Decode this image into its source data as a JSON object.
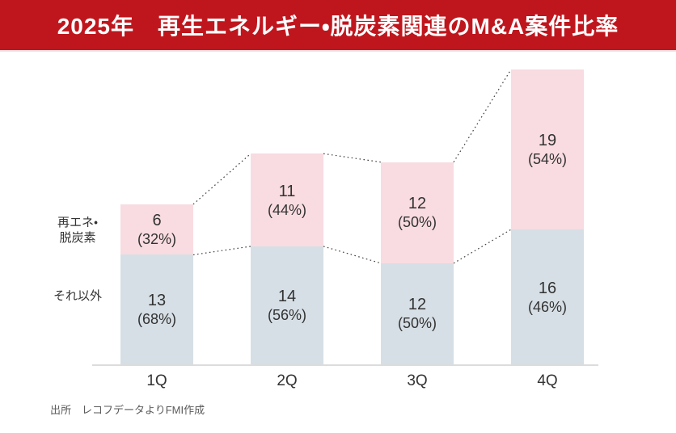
{
  "header": {
    "title": "2025年　再生エネルギー・脱炭素関連のM&A案件比率"
  },
  "labels": {
    "renewable_line1": "再エネ・",
    "renewable_line2": "脱炭素"
  },
  "footer": {
    "source": "出所　レコフデータよりFMI作成"
  },
  "colors": {
    "banner_red": "#bf161d",
    "renewable_pink": "#f8dce1",
    "others_blue": "#d6dfe5",
    "connector_dark": "#3d3d3d",
    "axis_gray": "#dcdcdc",
    "value_text": "#323232",
    "source_gray": "#595959"
  },
  "chart_data": {
    "type": "bar",
    "stacked": true,
    "title": "2025年　再生エネルギー・脱炭素関連のM&A案件比率",
    "categories": [
      "1Q",
      "2Q",
      "3Q",
      "4Q"
    ],
    "series": [
      {
        "name": "再エネ・脱炭素",
        "position": "top",
        "color": "#f8dce1",
        "values": [
          6,
          11,
          12,
          19
        ],
        "percent_labels": [
          "(32%)",
          "(44%)",
          "(50%)",
          "(54%)"
        ]
      },
      {
        "name": "それ以外",
        "position": "bottom",
        "color": "#d6dfe5",
        "values": [
          13,
          14,
          12,
          16
        ],
        "percent_labels": [
          "(68%)",
          "(56%)",
          "(50%)",
          "(46%)"
        ]
      }
    ],
    "totals": [
      19,
      25,
      24,
      35
    ],
    "value_label_format": "count newline (percent)",
    "grid": false,
    "y_axis_visible": false,
    "x_axis_line": true,
    "connector_lines": "dotted lines joining top edge and segment boundary of adjacent bars",
    "legend_position": "left of first bar, aligned to segments"
  }
}
